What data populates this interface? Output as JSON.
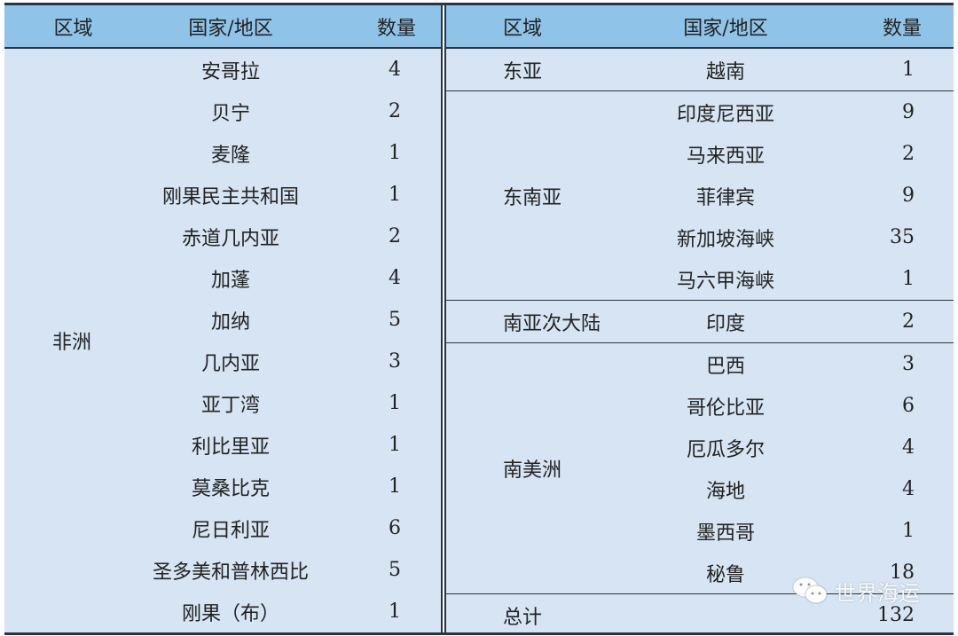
{
  "headers": {
    "region": "区域",
    "country": "国家/地区",
    "count": "数量"
  },
  "left": {
    "region": "非洲",
    "rows": [
      {
        "country": "安哥拉",
        "count": "4"
      },
      {
        "country": "贝宁",
        "count": "2"
      },
      {
        "country": "麦隆",
        "count": "1"
      },
      {
        "country": "刚果民主共和国",
        "count": "1"
      },
      {
        "country": "赤道几内亚",
        "count": "2"
      },
      {
        "country": "加蓬",
        "count": "4"
      },
      {
        "country": "加纳",
        "count": "5"
      },
      {
        "country": "几内亚",
        "count": "3"
      },
      {
        "country": "亚丁湾",
        "count": "1"
      },
      {
        "country": "利比里亚",
        "count": "1"
      },
      {
        "country": "莫桑比克",
        "count": "1"
      },
      {
        "country": "尼日利亚",
        "count": "6"
      },
      {
        "country": "圣多美和普林西比",
        "count": "5"
      },
      {
        "country": "刚果（布）",
        "count": "1"
      }
    ]
  },
  "right": {
    "groups": [
      {
        "region": "东亚",
        "rows": [
          {
            "country": "越南",
            "count": "1"
          }
        ]
      },
      {
        "region": "东南亚",
        "rows": [
          {
            "country": "印度尼西亚",
            "count": "9"
          },
          {
            "country": "马来西亚",
            "count": "2"
          },
          {
            "country": "菲律宾",
            "count": "9"
          },
          {
            "country": "新加坡海峡",
            "count": "35"
          },
          {
            "country": "马六甲海峡",
            "count": "1"
          }
        ]
      },
      {
        "region": "南亚次大陆",
        "rows": [
          {
            "country": "印度",
            "count": "2"
          }
        ]
      },
      {
        "region": "南美洲",
        "rows": [
          {
            "country": "巴西",
            "count": "3"
          },
          {
            "country": "哥伦比亚",
            "count": "6"
          },
          {
            "country": "厄瓜多尔",
            "count": "4"
          },
          {
            "country": "海地",
            "count": "4"
          },
          {
            "country": "墨西哥",
            "count": "1"
          },
          {
            "country": "秘鲁",
            "count": "18"
          }
        ]
      }
    ],
    "total": {
      "label": "总计",
      "count": "132"
    }
  },
  "watermark": {
    "text": "世界海运",
    "icon": "wechat-icon"
  }
}
